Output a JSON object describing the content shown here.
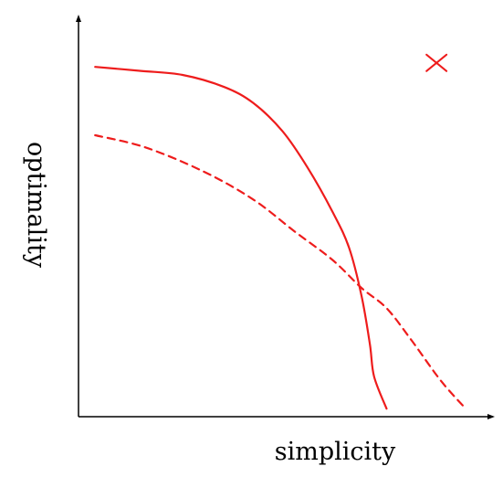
{
  "chart_data": {
    "type": "line",
    "title": "",
    "xlabel": "simplicity",
    "ylabel": "optimality",
    "xlim": [
      0,
      1
    ],
    "ylim": [
      0,
      1
    ],
    "grid": false,
    "legend": "none",
    "series": [
      {
        "style": "solid",
        "color": "#ee1c1c",
        "x": [
          0.04,
          0.15,
          0.25,
          0.35,
          0.42,
          0.49,
          0.55,
          0.61,
          0.65,
          0.68,
          0.7,
          0.71,
          0.74
        ],
        "y": [
          0.87,
          0.86,
          0.85,
          0.82,
          0.78,
          0.71,
          0.62,
          0.51,
          0.42,
          0.3,
          0.18,
          0.1,
          0.02
        ]
      },
      {
        "style": "dashed",
        "color": "#ee1c1c",
        "x": [
          0.04,
          0.16,
          0.3,
          0.42,
          0.52,
          0.61,
          0.68,
          0.74,
          0.8,
          0.87,
          0.93
        ],
        "y": [
          0.7,
          0.67,
          0.61,
          0.54,
          0.46,
          0.39,
          0.32,
          0.27,
          0.19,
          0.09,
          0.02
        ]
      }
    ],
    "markers": [
      {
        "symbol": "x",
        "color": "#ee1c1c",
        "x": [
          0.86
        ],
        "y": [
          0.88
        ]
      }
    ]
  }
}
